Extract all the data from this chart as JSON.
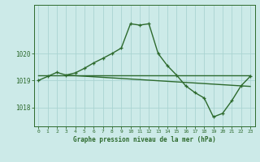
{
  "title": "Graphe pression niveau de la mer (hPa)",
  "bg_color": "#cceae8",
  "grid_color": "#aad4d2",
  "line_color": "#2d6a2d",
  "xlim": [
    -0.5,
    23.5
  ],
  "ylim": [
    1017.3,
    1021.8
  ],
  "yticks": [
    1018,
    1019,
    1020
  ],
  "xticks": [
    0,
    1,
    2,
    3,
    4,
    5,
    6,
    7,
    8,
    9,
    10,
    11,
    12,
    13,
    14,
    15,
    16,
    17,
    18,
    19,
    20,
    21,
    22,
    23
  ],
  "line1_x": [
    0,
    1,
    2,
    3,
    4,
    5,
    6,
    7,
    8,
    9,
    10,
    11,
    12,
    13,
    14,
    15,
    16,
    17,
    18,
    19,
    20,
    21,
    22,
    23
  ],
  "line1_y": [
    1019.0,
    1019.15,
    1019.3,
    1019.2,
    1019.28,
    1019.45,
    1019.65,
    1019.82,
    1020.0,
    1020.2,
    1021.1,
    1021.05,
    1021.1,
    1020.0,
    1019.55,
    1019.2,
    1018.8,
    1018.55,
    1018.35,
    1017.65,
    1017.78,
    1018.25,
    1018.8,
    1019.15
  ],
  "line2_x": [
    0,
    23
  ],
  "line2_y": [
    1019.18,
    1019.18
  ],
  "line3_x": [
    3,
    23
  ],
  "line3_y": [
    1019.2,
    1018.78
  ]
}
